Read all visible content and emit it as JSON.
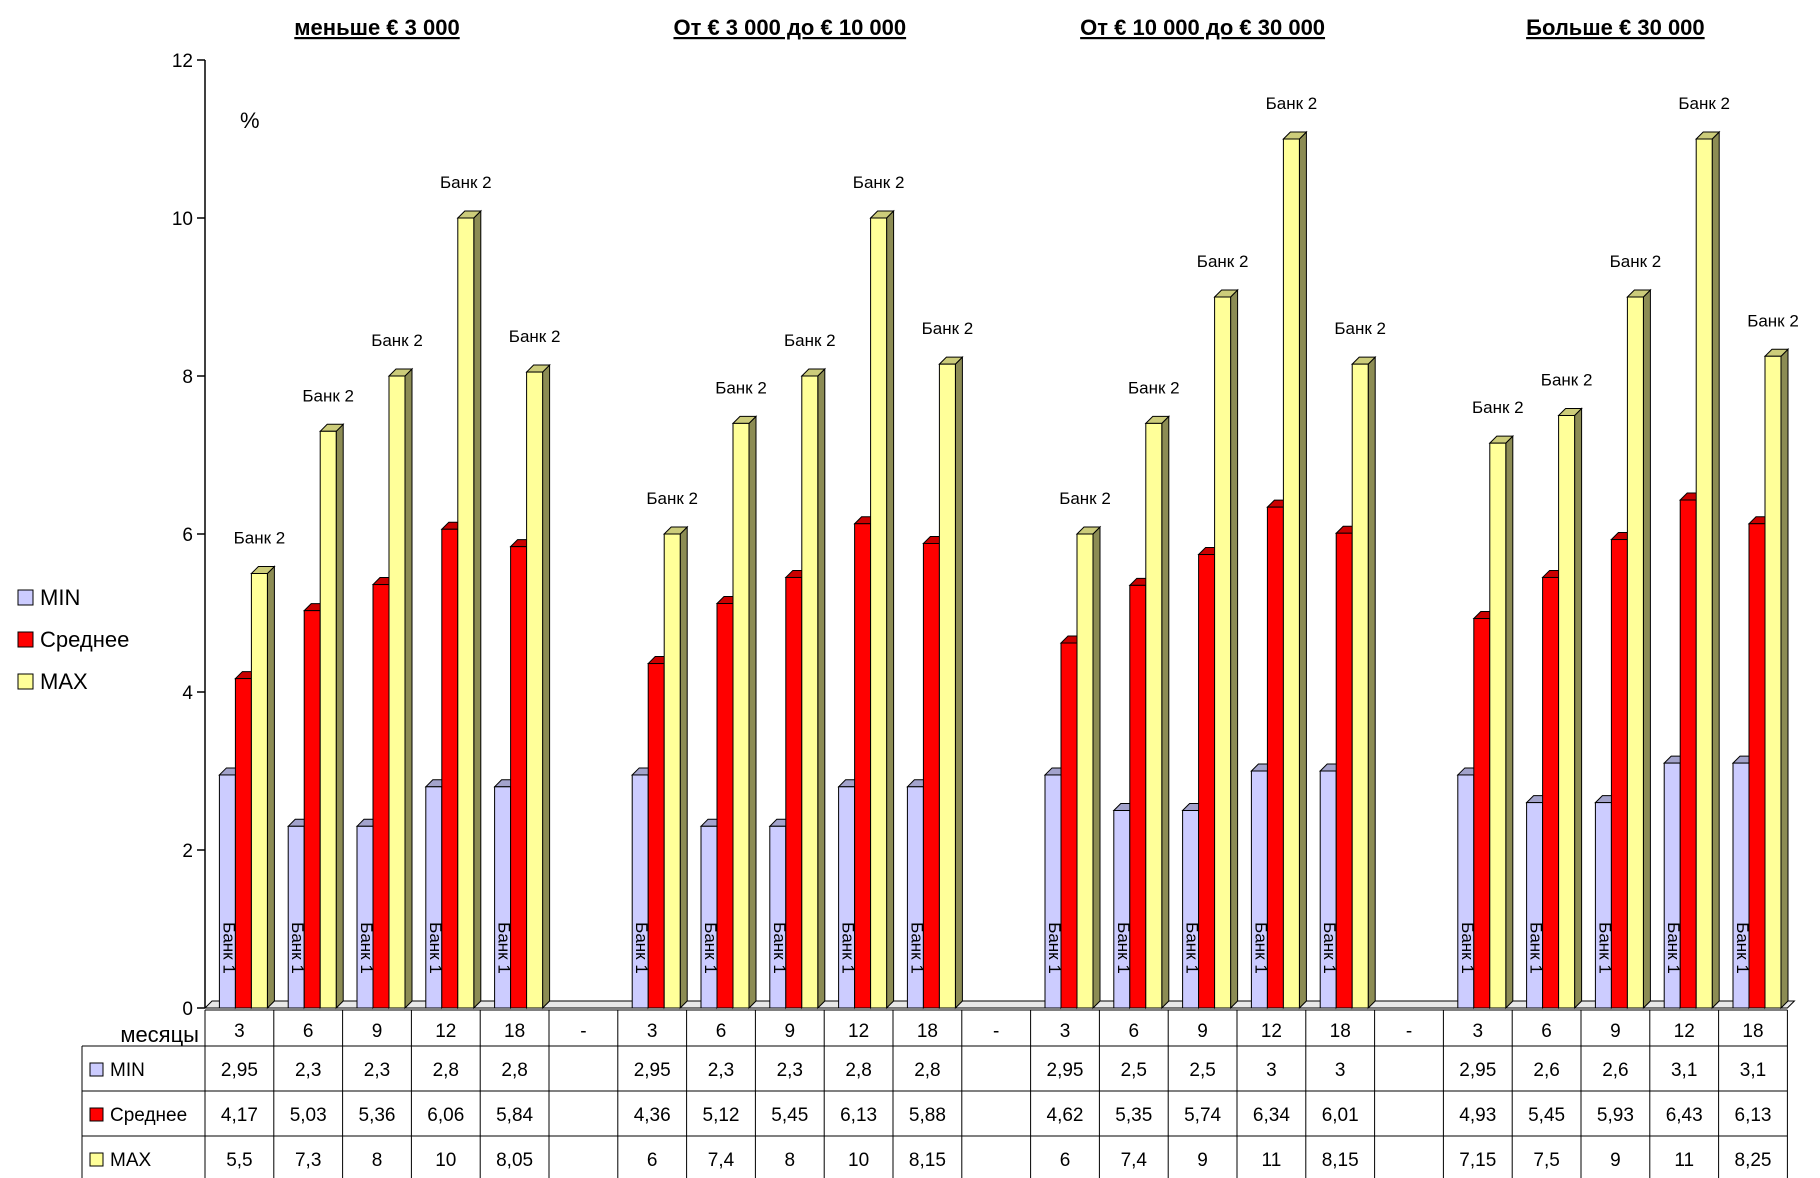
{
  "chart_data": {
    "type": "bar",
    "group_titles": [
      "меньше € 3 000",
      "От € 3 000 до € 10 000",
      "От € 10 000 до € 30 000",
      "Больше € 30 000"
    ],
    "ylabel": "%",
    "ylim": [
      0,
      12
    ],
    "yticks": [
      "0",
      "2",
      "4",
      "6",
      "8",
      "10",
      "12"
    ],
    "table_row_label": "месяцы",
    "categories": [
      "3",
      "6",
      "9",
      "12",
      "18",
      "-",
      "3",
      "6",
      "9",
      "12",
      "18",
      "-",
      "3",
      "6",
      "9",
      "12",
      "18",
      "-",
      "3",
      "6",
      "9",
      "12",
      "18"
    ],
    "series": [
      {
        "name": "MIN",
        "color": "#ccccff",
        "bar_label": "Банк 1",
        "values": [
          2.95,
          2.3,
          2.3,
          2.8,
          2.8,
          null,
          2.95,
          2.3,
          2.3,
          2.8,
          2.8,
          null,
          2.95,
          2.5,
          2.5,
          3,
          3,
          null,
          2.95,
          2.6,
          2.6,
          3.1,
          3.1
        ],
        "display": [
          "2,95",
          "2,3",
          "2,3",
          "2,8",
          "2,8",
          "",
          "2,95",
          "2,3",
          "2,3",
          "2,8",
          "2,8",
          "",
          "2,95",
          "2,5",
          "2,5",
          "3",
          "3",
          "",
          "2,95",
          "2,6",
          "2,6",
          "3,1",
          "3,1"
        ]
      },
      {
        "name": "Среднее",
        "color": "#ff0000",
        "bar_label": "",
        "values": [
          4.17,
          5.03,
          5.36,
          6.06,
          5.84,
          null,
          4.36,
          5.12,
          5.45,
          6.13,
          5.88,
          null,
          4.62,
          5.35,
          5.74,
          6.34,
          6.01,
          null,
          4.93,
          5.45,
          5.93,
          6.43,
          6.13
        ],
        "display": [
          "4,17",
          "5,03",
          "5,36",
          "6,06",
          "5,84",
          "",
          "4,36",
          "5,12",
          "5,45",
          "6,13",
          "5,88",
          "",
          "4,62",
          "5,35",
          "5,74",
          "6,34",
          "6,01",
          "",
          "4,93",
          "5,45",
          "5,93",
          "6,43",
          "6,13"
        ]
      },
      {
        "name": "MAX",
        "color": "#ffff99",
        "bar_label": "Банк 2",
        "values": [
          5.5,
          7.3,
          8,
          10,
          8.05,
          null,
          6,
          7.4,
          8,
          10,
          8.15,
          null,
          6,
          7.4,
          9,
          11,
          8.15,
          null,
          7.15,
          7.5,
          9,
          11,
          8.25
        ],
        "display": [
          "5,5",
          "7,3",
          "8",
          "10",
          "8,05",
          "",
          "6",
          "7,4",
          "8",
          "10",
          "8,15",
          "",
          "6",
          "7,4",
          "9",
          "11",
          "8,15",
          "",
          "7,15",
          "7,5",
          "9",
          "11",
          "8,25"
        ]
      }
    ],
    "legend_position": "left",
    "grid": false
  }
}
